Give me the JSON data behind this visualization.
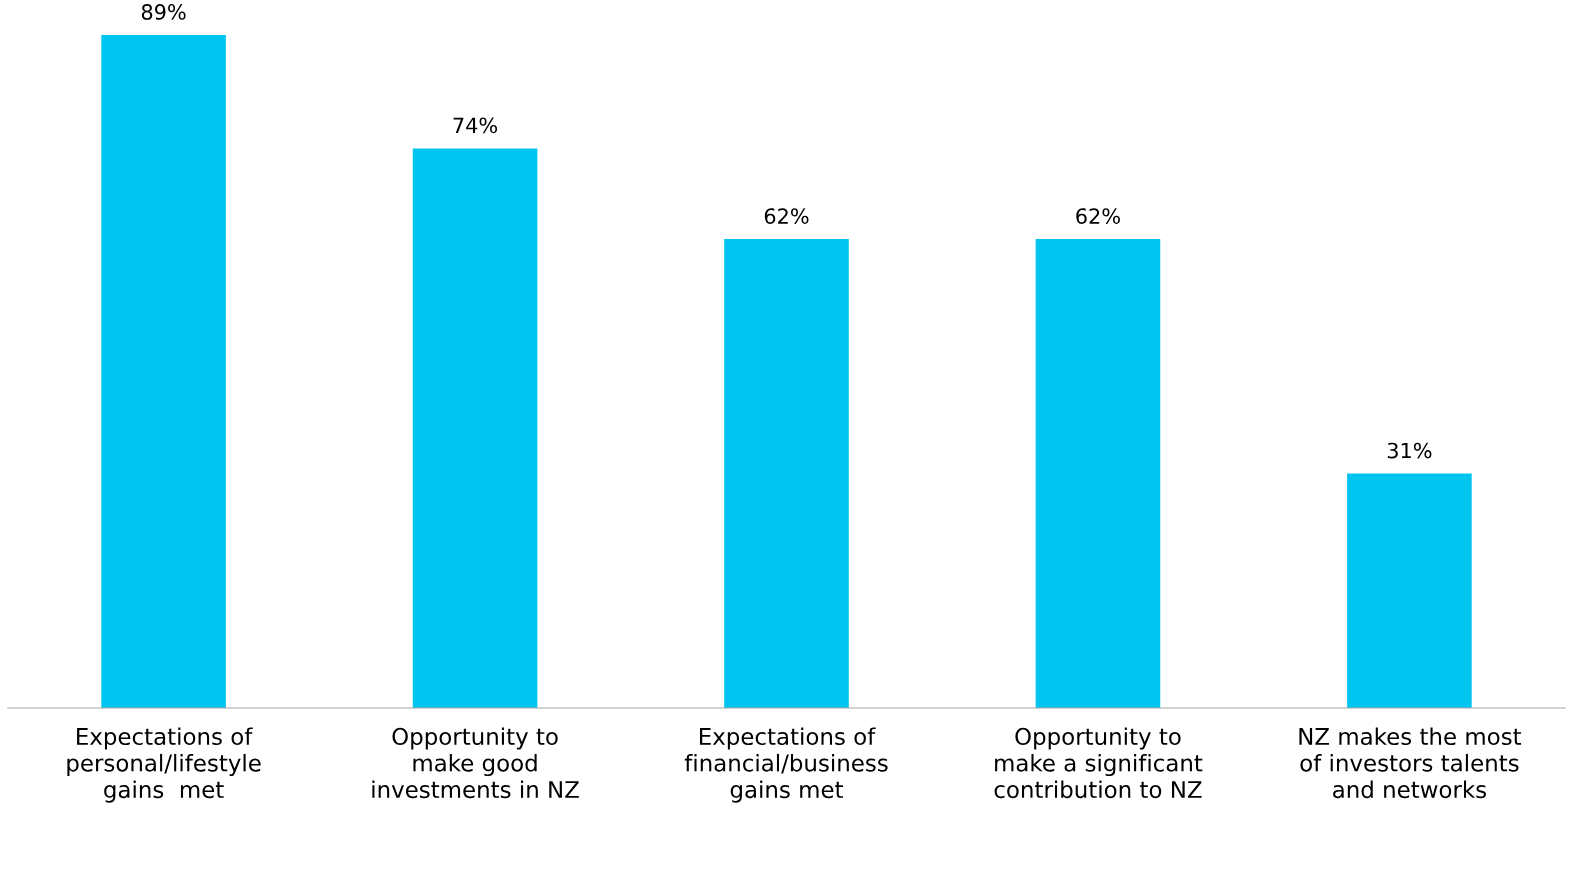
{
  "chart_data": {
    "type": "bar",
    "categories": [
      "Expectations of\npersonal/lifestyle\ngains  met",
      "Opportunity to\nmake good\ninvestments in NZ",
      "Expectations of\nfinancial/business\ngains met",
      "Opportunity to\nmake a significant\ncontribution to NZ",
      "NZ makes the most\nof investors talents\nand networks"
    ],
    "values": [
      89,
      74,
      62,
      62,
      31
    ],
    "value_labels": [
      "89%",
      "74%",
      "62%",
      "62%",
      "31%"
    ],
    "color": "#00c5f0",
    "grid": false,
    "legend": false
  }
}
